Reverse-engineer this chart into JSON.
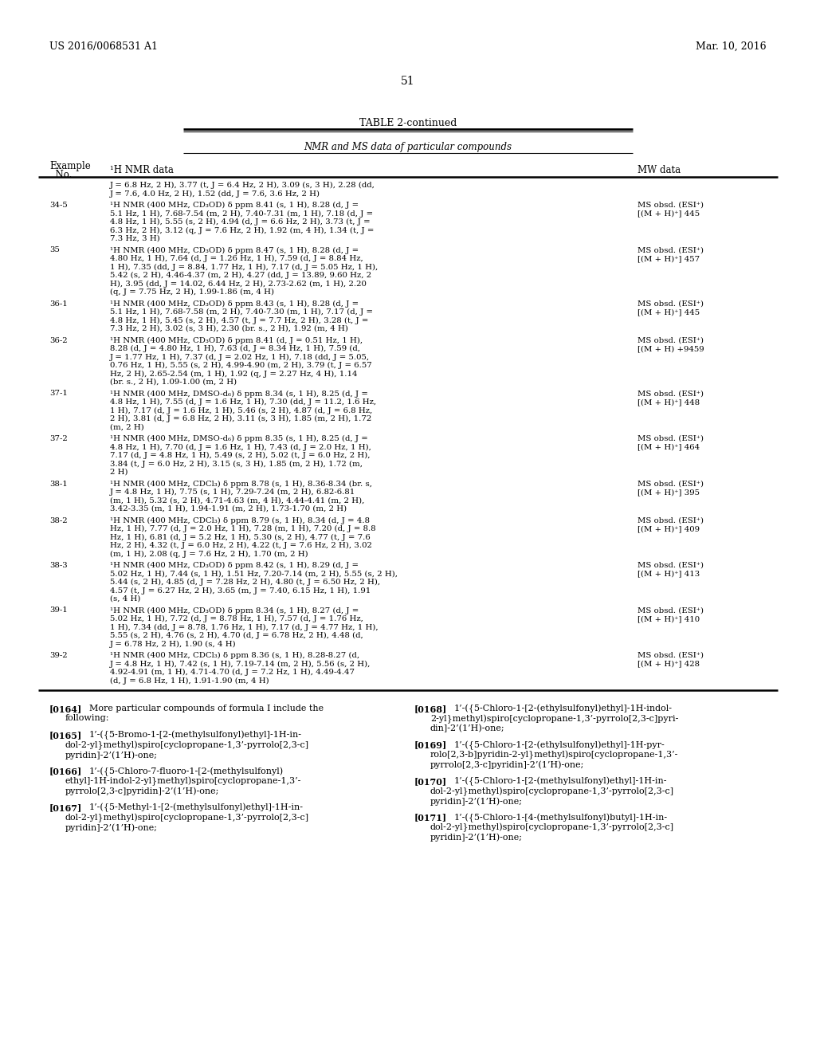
{
  "page_header_left": "US 2016/0068531 A1",
  "page_header_right": "Mar. 10, 2016",
  "page_number": "51",
  "table_title": "TABLE 2-continued",
  "table_subtitle": "NMR and MS data of particular compounds",
  "background_color": "#ffffff",
  "text_color": "#000000",
  "table_rows": [
    {
      "ex": "",
      "nmr": "J = 6.8 Hz, 2 H), 3.77 (t, J = 6.4 Hz, 2 H), 3.09 (s, 3 H), 2.28 (dd,\nJ = 7.6, 4.0 Hz, 2 H), 1.52 (dd, J = 7.6, 3.6 Hz, 2 H)",
      "mw": ""
    },
    {
      "ex": "34-5",
      "nmr": "¹H NMR (400 MHz, CD₃OD) δ ppm 8.41 (s, 1 H), 8.28 (d, J =\n5.1 Hz, 1 H), 7.68-7.54 (m, 2 H), 7.40-7.31 (m, 1 H), 7.18 (d, J =\n4.8 Hz, 1 H), 5.55 (s, 2 H), 4.94 (d, J = 6.6 Hz, 2 H), 3.73 (t, J =\n6.3 Hz, 2 H), 3.12 (q, J = 7.6 Hz, 2 H), 1.92 (m, 4 H), 1.34 (t, J =\n7.3 Hz, 3 H)",
      "mw": "MS obsd. (ESI⁺)\n[(M + H)⁺] 445"
    },
    {
      "ex": "35",
      "nmr": "¹H NMR (400 MHz, CD₃OD) δ ppm 8.47 (s, 1 H), 8.28 (d, J =\n4.80 Hz, 1 H), 7.64 (d, J = 1.26 Hz, 1 H), 7.59 (d, J = 8.84 Hz,\n1 H), 7.35 (dd, J = 8.84, 1.77 Hz, 1 H), 7.17 (d, J = 5.05 Hz, 1 H),\n5.42 (s, 2 H), 4.46-4.37 (m, 2 H), 4.27 (dd, J = 13.89, 9.60 Hz, 2\nH), 3.95 (dd, J = 14.02, 6.44 Hz, 2 H), 2.73-2.62 (m, 1 H), 2.20\n(q, J = 7.75 Hz, 2 H), 1.99-1.86 (m, 4 H)",
      "mw": "MS obsd. (ESI⁺)\n[(M + H)⁺] 457"
    },
    {
      "ex": "36-1",
      "nmr": "¹H NMR (400 MHz, CD₃OD) δ ppm 8.43 (s, 1 H), 8.28 (d, J =\n5.1 Hz, 1 H), 7.68-7.58 (m, 2 H), 7.40-7.30 (m, 1 H), 7.17 (d, J =\n4.8 Hz, 1 H), 5.45 (s, 2 H), 4.57 (t, J = 7.7 Hz, 2 H), 3.28 (t, J =\n7.3 Hz, 2 H), 3.02 (s, 3 H), 2.30 (br. s., 2 H), 1.92 (m, 4 H)",
      "mw": "MS obsd. (ESI⁺)\n[(M + H)⁺] 445"
    },
    {
      "ex": "36-2",
      "nmr": "¹H NMR (400 MHz, CD₃OD) δ ppm 8.41 (d, J = 0.51 Hz, 1 H),\n8.28 (d, J = 4.80 Hz, 1 H), 7.63 (d, J = 8.34 Hz, 1 H), 7.59 (d,\nJ = 1.77 Hz, 1 H), 7.37 (d, J = 2.02 Hz, 1 H), 7.18 (dd, J = 5.05,\n0.76 Hz, 1 H), 5.55 (s, 2 H), 4.99-4.90 (m, 2 H), 3.79 (t, J = 6.57\nHz, 2 H), 2.65-2.54 (m, 1 H), 1.92 (q, J = 2.27 Hz, 4 H), 1.14\n(br. s., 2 H), 1.09-1.00 (m, 2 H)",
      "mw": "MS obsd. (ESI⁺)\n[(M + H) +9459"
    },
    {
      "ex": "37-1",
      "nmr": "¹H NMR (400 MHz, DMSO-d₆) δ ppm 8.34 (s, 1 H), 8.25 (d, J =\n4.8 Hz, 1 H), 7.55 (d, J = 1.6 Hz, 1 H), 7.30 (dd, J = 11.2, 1.6 Hz,\n1 H), 7.17 (d, J = 1.6 Hz, 1 H), 5.46 (s, 2 H), 4.87 (d, J = 6.8 Hz,\n2 H), 3.81 (d, J = 6.8 Hz, 2 H), 3.11 (s, 3 H), 1.85 (m, 2 H), 1.72\n(m, 2 H)",
      "mw": "MS obsd. (ESI⁺)\n[(M + H)⁺] 448"
    },
    {
      "ex": "37-2",
      "nmr": "¹H NMR (400 MHz, DMSO-d₆) δ ppm 8.35 (s, 1 H), 8.25 (d, J =\n4.8 Hz, 1 H), 7.70 (d, J = 1.6 Hz, 1 H), 7.43 (d, J = 2.0 Hz, 1 H),\n7.17 (d, J = 4.8 Hz, 1 H), 5.49 (s, 2 H), 5.02 (t, J = 6.0 Hz, 2 H),\n3.84 (t, J = 6.0 Hz, 2 H), 3.15 (s, 3 H), 1.85 (m, 2 H), 1.72 (m,\n2 H)",
      "mw": "MS obsd. (ESI⁺)\n[(M + H)⁺] 464"
    },
    {
      "ex": "38-1",
      "nmr": "¹H NMR (400 MHz, CDCl₃) δ ppm 8.78 (s, 1 H), 8.36-8.34 (br. s,\nJ = 4.8 Hz, 1 H), 7.75 (s, 1 H), 7.29-7.24 (m, 2 H), 6.82-6.81\n(m, 1 H), 5.32 (s, 2 H), 4.71-4.63 (m, 4 H), 4.44-4.41 (m, 2 H),\n3.42-3.35 (m, 1 H), 1.94-1.91 (m, 2 H), 1.73-1.70 (m, 2 H)",
      "mw": "MS obsd. (ESI⁺)\n[(M + H)⁺] 395"
    },
    {
      "ex": "38-2",
      "nmr": "¹H NMR (400 MHz, CDCl₃) δ ppm 8.79 (s, 1 H), 8.34 (d, J = 4.8\nHz, 1 H), 7.77 (d, J = 2.0 Hz, 1 H), 7.28 (m, 1 H), 7.20 (d, J = 8.8\nHz, 1 H), 6.81 (d, J = 5.2 Hz, 1 H), 5.30 (s, 2 H), 4.77 (t, J = 7.6\nHz, 2 H), 4.32 (t, J = 6.0 Hz, 2 H), 4.22 (t, J = 7.6 Hz, 2 H), 3.02\n(m, 1 H), 2.08 (q, J = 7.6 Hz, 2 H), 1.70 (m, 2 H)",
      "mw": "MS obsd. (ESI⁺)\n[(M + H)⁺] 409"
    },
    {
      "ex": "38-3",
      "nmr": "¹H NMR (400 MHz, CD₃OD) δ ppm 8.42 (s, 1 H), 8.29 (d, J =\n5.02 Hz, 1 H), 7.44 (s, 1 H), 1.51 Hz, 7.20-7.14 (m, 2 H), 5.55 (s, 2 H),\n5.44 (s, 2 H), 4.85 (d, J = 7.28 Hz, 2 H), 4.80 (t, J = 6.50 Hz, 2 H),\n4.57 (t, J = 6.27 Hz, 2 H), 3.65 (m, J = 7.40, 6.15 Hz, 1 H), 1.91\n(s, 4 H)",
      "mw": "MS obsd. (ESI⁺)\n[(M + H)⁺] 413"
    },
    {
      "ex": "39-1",
      "nmr": "¹H NMR (400 MHz, CD₃OD) δ ppm 8.34 (s, 1 H), 8.27 (d, J =\n5.02 Hz, 1 H), 7.72 (d, J = 8.78 Hz, 1 H), 7.57 (d, J = 1.76 Hz,\n1 H), 7.34 (dd, J = 8.78, 1.76 Hz, 1 H), 7.17 (d, J = 4.77 Hz, 1 H),\n5.55 (s, 2 H), 4.76 (s, 2 H), 4.70 (d, J = 6.78 Hz, 2 H), 4.48 (d,\nJ = 6.78 Hz, 2 H), 1.90 (s, 4 H)",
      "mw": "MS obsd. (ESI⁺)\n[(M + H)⁺] 410"
    },
    {
      "ex": "39-2",
      "nmr": "¹H NMR (400 MHz, CDCl₃) δ ppm 8.36 (s, 1 H), 8.28-8.27 (d,\nJ = 4.8 Hz, 1 H), 7.42 (s, 1 H), 7.19-7.14 (m, 2 H), 5.56 (s, 2 H),\n4.92-4.91 (m, 1 H), 4.71-4.70 (d, J = 7.2 Hz, 1 H), 4.49-4.47\n(d, J = 6.8 Hz, 1 H), 1.91-1.90 (m, 4 H)",
      "mw": "MS obsd. (ESI⁺)\n[(M + H)⁺] 428"
    }
  ],
  "paragraphs_left": [
    {
      "tag": "[0164]",
      "text": "More particular compounds of formula I include the\nfollowing:"
    },
    {
      "tag": "[0165]",
      "text": "1’-({5-Bromo-1-[2-(methylsulfonyl)ethyl]-1H-in-\ndol-2-yl}methyl)spiro[cyclopropane-1,3’-pyrrolo[2,3-c]\npyridin]-2’(1’H)-one;"
    },
    {
      "tag": "[0166]",
      "text": "1’-({5-Chloro-7-fluoro-1-[2-(methylsulfonyl)\nethyl]-1H-indol-2-yl}methyl)spiro[cyclopropane-1,3’-\npyrrolo[2,3-c]pyridin]-2’(1’H)-one;"
    },
    {
      "tag": "[0167]",
      "text": "1’-({5-Methyl-1-[2-(methylsulfonyl)ethyl]-1H-in-\ndol-2-yl}methyl)spiro[cyclopropane-1,3’-pyrrolo[2,3-c]\npyridin]-2’(1’H)-one;"
    }
  ],
  "paragraphs_right": [
    {
      "tag": "[0168]",
      "text": "1’-({5-Chloro-1-[2-(ethylsulfonyl)ethyl]-1H-indol-\n2-yl}methyl)spiro[cyclopropane-1,3’-pyrrolo[2,3-c]pyri-\ndin]-2’(1’H)-one;"
    },
    {
      "tag": "[0169]",
      "text": "1’-({5-Chloro-1-[2-(ethylsulfonyl)ethyl]-1H-pyr-\nrolo[2,3-b]pyridin-2-yl}methyl)spiro[cyclopropane-1,3’-\npyrrolo[2,3-c]pyridin]-2’(1’H)-one;"
    },
    {
      "tag": "[0170]",
      "text": "1’-({5-Chloro-1-[2-(methylsulfonyl)ethyl]-1H-in-\ndol-2-yl}methyl)spiro[cyclopropane-1,3’-pyrrolo[2,3-c]\npyridin]-2’(1’H)-one;"
    },
    {
      "tag": "[0171]",
      "text": "1’-({5-Chloro-1-[4-(methylsulfonyl)butyl]-1H-in-\ndol-2-yl}methyl)spiro[cyclopropane-1,3’-pyrrolo[2,3-c]\npyridin]-2’(1’H)-one;"
    }
  ]
}
